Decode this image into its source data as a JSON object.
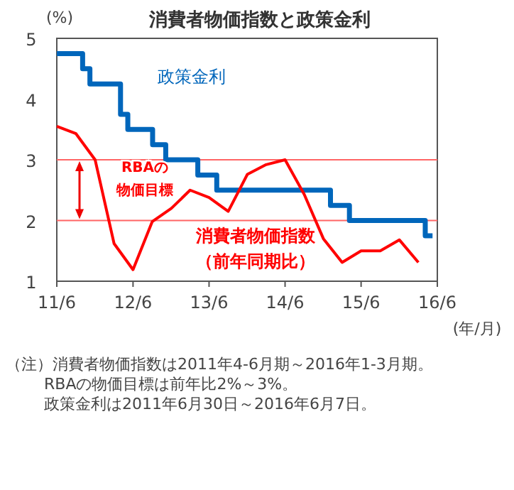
{
  "chart_data": {
    "type": "line",
    "title": "消費者物価指数と政策金利",
    "ylabel": "(%)",
    "xlabel": "(年/月)",
    "xlim": [
      "2011-06-30",
      "2016-06-30"
    ],
    "ylim": [
      1,
      5
    ],
    "yticks": [
      1,
      2,
      3,
      4,
      5
    ],
    "xticks": [
      {
        "value": "2011-06-30",
        "label": "11/6"
      },
      {
        "value": "2012-06-30",
        "label": "12/6"
      },
      {
        "value": "2013-06-30",
        "label": "13/6"
      },
      {
        "value": "2014-06-30",
        "label": "14/6"
      },
      {
        "value": "2015-06-30",
        "label": "15/6"
      },
      {
        "value": "2016-06-30",
        "label": "16/6"
      }
    ],
    "series": [
      {
        "name": "政策金利",
        "type": "step",
        "color": "#0066bb",
        "x": [
          "2011-06-30",
          "2011-11-01",
          "2011-12-06",
          "2012-05-01",
          "2012-06-05",
          "2012-10-02",
          "2012-12-04",
          "2013-05-07",
          "2013-08-06",
          "2015-02-03",
          "2015-05-05",
          "2016-05-03",
          "2016-06-07"
        ],
        "values": [
          4.75,
          4.5,
          4.25,
          3.75,
          3.5,
          3.25,
          3.0,
          2.75,
          2.5,
          2.25,
          2.0,
          1.75,
          1.75
        ]
      },
      {
        "name": "消費者物価指数（前年同期比）",
        "type": "line",
        "color": "#ff0000",
        "x": [
          "2011-06-30",
          "2011-09-30",
          "2011-12-31",
          "2012-03-31",
          "2012-06-30",
          "2012-09-30",
          "2012-12-31",
          "2013-03-31",
          "2013-06-30",
          "2013-09-30",
          "2013-12-31",
          "2014-03-31",
          "2014-06-30",
          "2014-09-30",
          "2014-12-31",
          "2015-03-31",
          "2015-06-30",
          "2015-09-30",
          "2015-12-31",
          "2016-03-31"
        ],
        "values": [
          3.55,
          3.43,
          3.0,
          1.62,
          1.19,
          1.98,
          2.2,
          2.5,
          2.38,
          2.15,
          2.76,
          2.92,
          3.0,
          2.43,
          1.7,
          1.31,
          1.5,
          1.5,
          1.68,
          1.31
        ]
      }
    ],
    "ref_lines": [
      {
        "axis": "y",
        "value": 3,
        "color": "#ff6666"
      },
      {
        "axis": "y",
        "value": 2,
        "color": "#ff6666"
      }
    ],
    "annotations": [
      "RBAの物価目標",
      "（注）消費者物価指数は2011年4-6月期～2016年1-3月期。",
      "RBAの物価目標は前年比2%～3%。",
      "政策金利は2011年6月30日～2016年6月7日。"
    ],
    "grid": false,
    "legend": false,
    "marker": "none",
    "line_style": "solid"
  }
}
